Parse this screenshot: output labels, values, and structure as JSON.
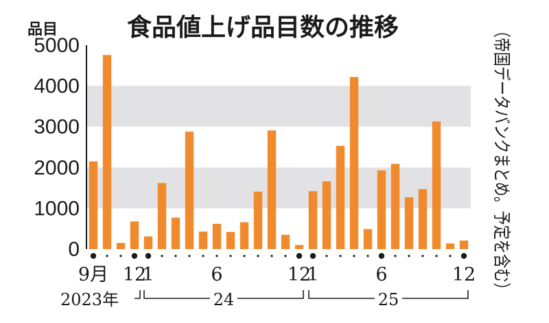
{
  "chart_data": {
    "type": "bar",
    "title": "食品値上げ品目数の推移",
    "ylabel": "品目",
    "note": "（帝国データバンクまとめ。予定を含む）",
    "ylim": [
      0,
      5000
    ],
    "yticks": [
      "0",
      "1000",
      "2000",
      "3000",
      "4000",
      "5000"
    ],
    "bar_color": "#f08a2c",
    "band_color": "#e2e2e4",
    "months": [
      "9",
      "10",
      "11",
      "12",
      "1",
      "2",
      "3",
      "4",
      "5",
      "6",
      "7",
      "8",
      "9",
      "10",
      "11",
      "12",
      "1",
      "2",
      "3",
      "4",
      "5",
      "6",
      "7",
      "8",
      "9",
      "10",
      "11",
      "12"
    ],
    "values": [
      2150,
      4760,
      150,
      680,
      310,
      1620,
      770,
      2880,
      430,
      620,
      420,
      660,
      1410,
      2910,
      350,
      100,
      1420,
      1660,
      2530,
      4220,
      490,
      1930,
      2090,
      1270,
      1470,
      3130,
      140,
      210
    ],
    "xtick_labels": [
      {
        "index": 0,
        "text": "9月"
      },
      {
        "index": 3,
        "text": "12"
      },
      {
        "index": 4,
        "text": "1"
      },
      {
        "index": 9,
        "text": "6"
      },
      {
        "index": 15,
        "text": "12"
      },
      {
        "index": 16,
        "text": "1"
      },
      {
        "index": 21,
        "text": "6"
      },
      {
        "index": 27,
        "text": "12"
      }
    ],
    "marker_indices": [
      0,
      3,
      4,
      15,
      16,
      21,
      27
    ],
    "year_labels": [
      {
        "text": "2023年",
        "start": 0,
        "end": 3
      },
      {
        "text": "24",
        "start": 4,
        "end": 15
      },
      {
        "text": "25",
        "start": 16,
        "end": 27
      }
    ]
  }
}
